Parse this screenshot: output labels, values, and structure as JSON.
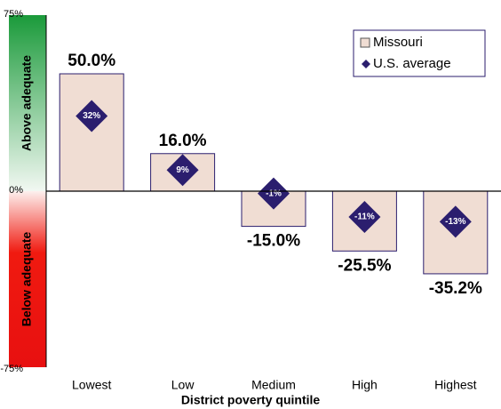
{
  "chart_data": {
    "type": "bar",
    "x_label": "District poverty quintile",
    "y_band_labels": [
      "Above adequate",
      "Below adequate"
    ],
    "categories": [
      "Lowest",
      "Low",
      "Medium",
      "High",
      "Highest"
    ],
    "series": [
      {
        "name": "Missouri",
        "color": "#f0ddd3",
        "values": [
          50.0,
          16.0,
          -15.0,
          -25.5,
          -35.2
        ],
        "value_labels": [
          "50.0%",
          "16.0%",
          "-15.0%",
          "-25.5%",
          "-35.2%"
        ]
      },
      {
        "name": "U.S. average",
        "color": "#2b1e6e",
        "marker": "diamond",
        "values": [
          32,
          9,
          -1,
          -11,
          -13
        ],
        "value_labels": [
          "32%",
          "9%",
          "-1%",
          "-11%",
          "-13%"
        ]
      }
    ],
    "ylim": [
      -75,
      75
    ],
    "yticks": [
      {
        "value": -75,
        "label": "-75%"
      },
      {
        "value": 0,
        "label": "0%"
      },
      {
        "value": 75,
        "label": "75%"
      }
    ],
    "legend": "top-right"
  }
}
